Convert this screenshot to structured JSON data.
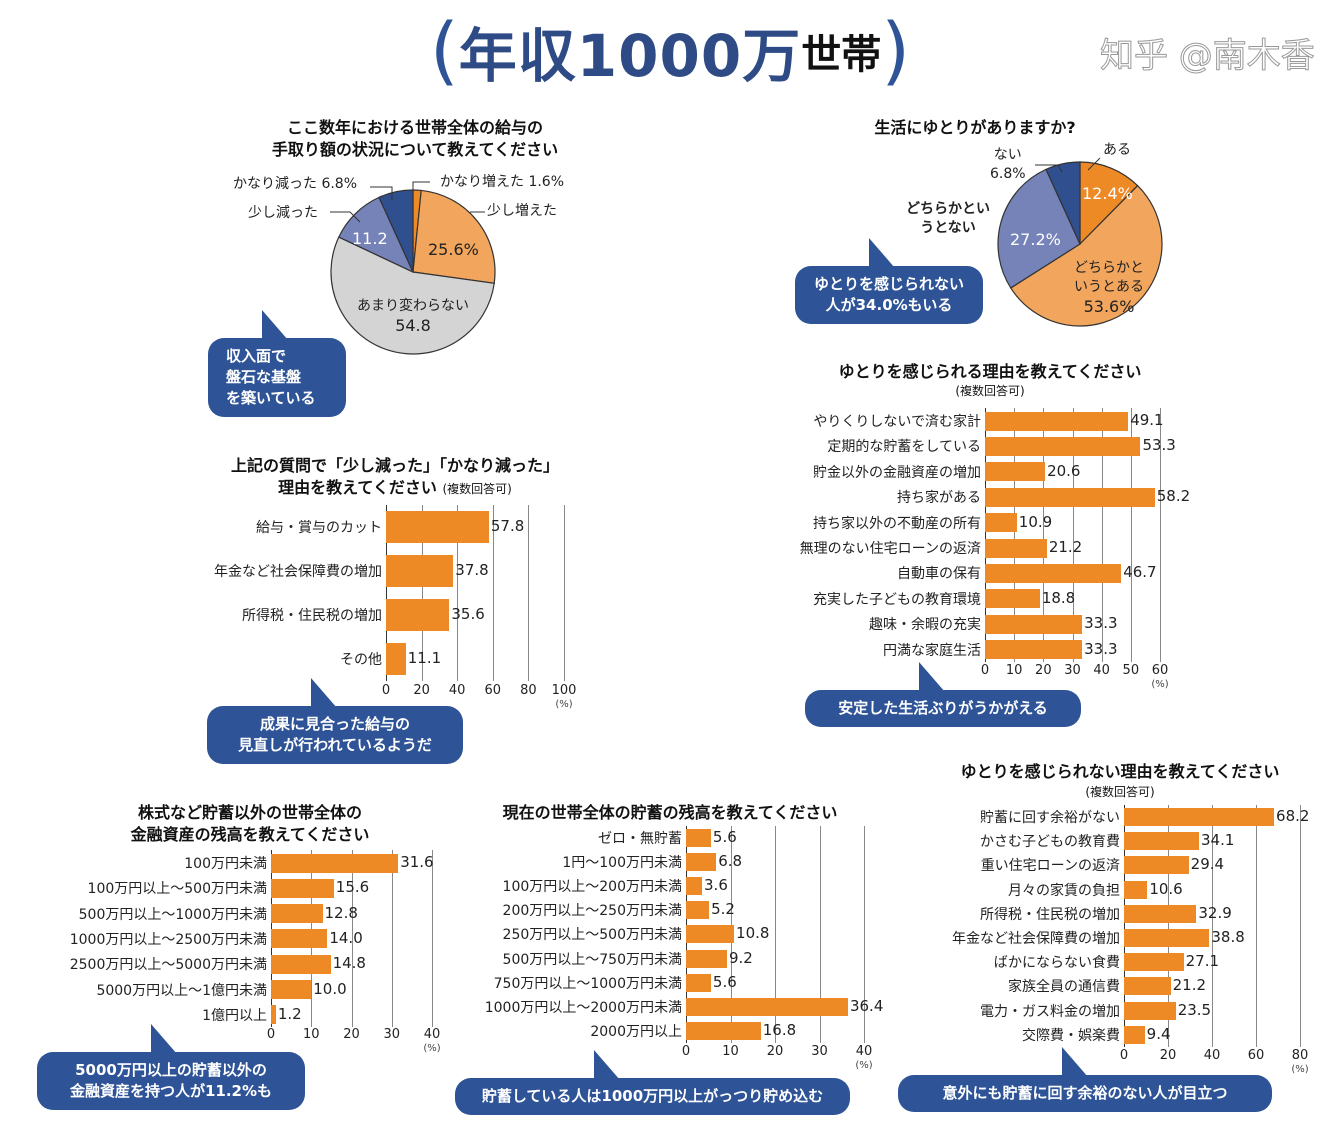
{
  "title": {
    "open": "(",
    "main": "年収1000万",
    "sub": "世帯",
    "close": ")"
  },
  "colors": {
    "orange": "#ee8a25",
    "light_orange": "#f2a55c",
    "gray": "#d4d4d4",
    "periwinkle": "#7583b8",
    "navy": "#2f4f8f",
    "bubble": "#2e5497"
  },
  "bubbles": [
    {
      "lines": [
        "収入面で",
        "盤石な基盤",
        "を築いている"
      ]
    },
    {
      "lines": [
        "ゆとりを感じられない",
        "人が34.0%もいる"
      ]
    },
    {
      "lines": [
        "成果に見合った給与の",
        "見直しが行われているようだ"
      ]
    },
    {
      "lines": [
        "安定した生活ぶりがうかがえる"
      ]
    },
    {
      "lines": [
        "5000万円以上の貯蓄以外の",
        "金融資産を持つ人が11.2%も"
      ]
    },
    {
      "lines": [
        "貯蓄している人は1000万円以上がっつり貯め込む"
      ]
    },
    {
      "lines": [
        "意外にも貯蓄に回す余裕のない人が目立つ"
      ]
    }
  ],
  "watermark": "知乎 @南木香",
  "chart_data": [
    {
      "type": "pie",
      "title_lines": [
        "ここ数年における世帯全体の給与の",
        "手取り額の状況について教えてください"
      ],
      "slices": [
        {
          "label": "かなり増えた",
          "value": 1.6,
          "value_label": "1.6%",
          "color": "#ee8a25"
        },
        {
          "label": "少し増えた",
          "value": 25.6,
          "value_label": "25.6%",
          "color": "#f2a55c"
        },
        {
          "label": "あまり変わらない",
          "value": 54.8,
          "value_label": "54.8",
          "color": "#d4d4d4"
        },
        {
          "label": "少し減った",
          "value": 11.2,
          "value_label": "11.2",
          "color": "#7583b8"
        },
        {
          "label": "かなり減った",
          "value": 6.8,
          "value_label": "6.8%",
          "color": "#2f4f8f"
        }
      ]
    },
    {
      "type": "pie",
      "title_lines": [
        "生活にゆとりがありますか?"
      ],
      "slices": [
        {
          "label": "ある",
          "value": 12.4,
          "value_label": "12.4%",
          "color": "#ee8a25"
        },
        {
          "label": "どちらかというとある",
          "value": 53.6,
          "value_label": "53.6%",
          "color": "#f2a55c"
        },
        {
          "label": "どちらかというとない",
          "value": 27.2,
          "value_label": "27.2%",
          "color": "#7583b8"
        },
        {
          "label": "ない",
          "value": 6.8,
          "value_label": "6.8%",
          "color": "#2f4f8f"
        }
      ]
    },
    {
      "type": "bar",
      "orientation": "horizontal",
      "title_lines": [
        "上記の質問で「少し減った」「かなり減った」",
        "理由を教えてください"
      ],
      "note": "(複数回答可)",
      "categories": [
        "給与・賞与のカット",
        "年金など社会保障費の増加",
        "所得税・住民税の増加",
        "その他"
      ],
      "values": [
        57.8,
        37.8,
        35.6,
        11.1
      ],
      "ticks": [
        0,
        20,
        40,
        60,
        80,
        100
      ],
      "xlim": [
        0,
        100
      ],
      "unit": "(%)",
      "grid": true
    },
    {
      "type": "bar",
      "orientation": "horizontal",
      "title_lines": [
        "ゆとりを感じられる理由を教えてください"
      ],
      "note": "(複数回答可)",
      "categories": [
        "やりくりしないで済む家計",
        "定期的な貯蓄をしている",
        "貯金以外の金融資産の増加",
        "持ち家がある",
        "持ち家以外の不動産の所有",
        "無理のない住宅ローンの返済",
        "自動車の保有",
        "充実した子どもの教育環境",
        "趣味・余暇の充実",
        "円満な家庭生活"
      ],
      "values": [
        49.1,
        53.3,
        20.6,
        58.2,
        10.9,
        21.2,
        46.7,
        18.8,
        33.3,
        33.3
      ],
      "ticks": [
        0,
        10,
        20,
        30,
        40,
        50,
        60
      ],
      "xlim": [
        0,
        60
      ],
      "unit": "(%)",
      "grid": true
    },
    {
      "type": "bar",
      "orientation": "horizontal",
      "title_lines": [
        "株式など貯蓄以外の世帯全体の",
        "金融資産の残高を教えてください"
      ],
      "note": "",
      "categories": [
        "100万円未満",
        "100万円以上～500万円未満",
        "500万円以上～1000万円未満",
        "1000万円以上～2500万円未満",
        "2500万円以上～5000万円未満",
        "5000万円以上～1億円未満",
        "1億円以上"
      ],
      "values": [
        31.6,
        15.6,
        12.8,
        14.0,
        14.8,
        10.0,
        1.2
      ],
      "value_labels": [
        "31.6",
        "15.6",
        "12.8",
        "14.0",
        "14.8",
        "10.0",
        "1.2"
      ],
      "ticks": [
        0,
        10,
        20,
        30,
        40
      ],
      "xlim": [
        0,
        40
      ],
      "unit": "(%)",
      "grid": true
    },
    {
      "type": "bar",
      "orientation": "horizontal",
      "title_lines": [
        "現在の世帯全体の貯蓄の残高を教えてください"
      ],
      "note": "",
      "categories": [
        "ゼロ・無貯蓄",
        "1円～100万円未満",
        "100万円以上～200万円未満",
        "200万円以上～250万円未満",
        "250万円以上～500万円未満",
        "500万円以上～750万円未満",
        "750万円以上～1000万円未満",
        "1000万円以上～2000万円未満",
        "2000万円以上"
      ],
      "values": [
        5.6,
        6.8,
        3.6,
        5.2,
        10.8,
        9.2,
        5.6,
        36.4,
        16.8
      ],
      "ticks": [
        0,
        10,
        20,
        30,
        40
      ],
      "xlim": [
        0,
        40
      ],
      "unit": "(%)",
      "grid": true
    },
    {
      "type": "bar",
      "orientation": "horizontal",
      "title_lines": [
        "ゆとりを感じられない理由を教えてください"
      ],
      "note": "(複数回答可)",
      "categories": [
        "貯蓄に回す余裕がない",
        "かさむ子どもの教育費",
        "重い住宅ローンの返済",
        "月々の家賃の負担",
        "所得税・住民税の増加",
        "年金など社会保障費の増加",
        "ばかにならない食費",
        "家族全員の通信費",
        "電力・ガス料金の増加",
        "交際費・娯楽費"
      ],
      "values": [
        68.2,
        34.1,
        29.4,
        10.6,
        32.9,
        38.8,
        27.1,
        21.2,
        23.5,
        9.4
      ],
      "ticks": [
        0,
        20,
        40,
        60,
        80
      ],
      "xlim": [
        0,
        80
      ],
      "unit": "(%)",
      "grid": true
    }
  ]
}
